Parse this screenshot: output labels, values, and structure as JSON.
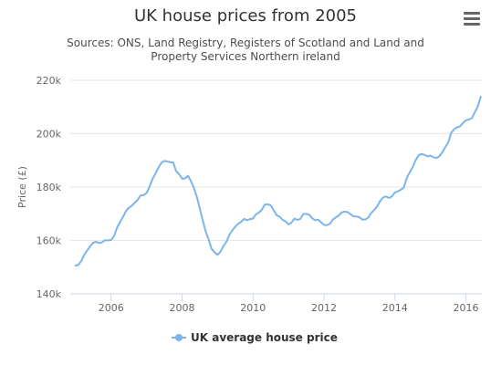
{
  "title": "UK house prices from 2005",
  "subtitle": "Sources: ONS, Land Registry, Registers of Scotland and Land and Property Services Northern ireland",
  "menu_icon": "hamburger-menu-icon",
  "chart_data": {
    "type": "line",
    "title": "UK house prices from 2005",
    "xlabel": "",
    "ylabel": "Price (£)",
    "x_ticks": [
      2006,
      2008,
      2010,
      2012,
      2014,
      2016
    ],
    "y_ticks": [
      140000,
      160000,
      180000,
      200000,
      220000
    ],
    "y_tick_labels": [
      "140k",
      "160k",
      "180k",
      "200k",
      "220k"
    ],
    "xlim": [
      2004.85,
      2016.45
    ],
    "ylim": [
      140000,
      220000
    ],
    "grid": "horizontal",
    "legend": "bottom-center",
    "series": [
      {
        "name": "UK average house price",
        "color": "#7cb5ec",
        "x": [
          2005.0,
          2005.08,
          2005.17,
          2005.25,
          2005.33,
          2005.42,
          2005.5,
          2005.58,
          2005.67,
          2005.75,
          2005.83,
          2005.92,
          2006.0,
          2006.08,
          2006.17,
          2006.25,
          2006.33,
          2006.42,
          2006.5,
          2006.58,
          2006.67,
          2006.75,
          2006.83,
          2006.92,
          2007.0,
          2007.08,
          2007.17,
          2007.25,
          2007.33,
          2007.42,
          2007.5,
          2007.58,
          2007.67,
          2007.75,
          2007.83,
          2007.92,
          2008.0,
          2008.08,
          2008.17,
          2008.25,
          2008.33,
          2008.42,
          2008.5,
          2008.58,
          2008.67,
          2008.75,
          2008.83,
          2008.92,
          2009.0,
          2009.08,
          2009.17,
          2009.25,
          2009.33,
          2009.42,
          2009.5,
          2009.58,
          2009.67,
          2009.75,
          2009.83,
          2009.92,
          2010.0,
          2010.08,
          2010.17,
          2010.25,
          2010.33,
          2010.42,
          2010.5,
          2010.58,
          2010.67,
          2010.75,
          2010.83,
          2010.92,
          2011.0,
          2011.08,
          2011.17,
          2011.25,
          2011.33,
          2011.42,
          2011.5,
          2011.58,
          2011.67,
          2011.75,
          2011.83,
          2011.92,
          2012.0,
          2012.08,
          2012.17,
          2012.25,
          2012.33,
          2012.42,
          2012.5,
          2012.58,
          2012.67,
          2012.75,
          2012.83,
          2012.92,
          2013.0,
          2013.08,
          2013.17,
          2013.25,
          2013.33,
          2013.42,
          2013.5,
          2013.58,
          2013.67,
          2013.75,
          2013.83,
          2013.92,
          2014.0,
          2014.08,
          2014.17,
          2014.25,
          2014.33,
          2014.42,
          2014.5,
          2014.58,
          2014.67,
          2014.75,
          2014.83,
          2014.92,
          2015.0,
          2015.08,
          2015.17,
          2015.25,
          2015.33,
          2015.42,
          2015.5,
          2015.58,
          2015.67,
          2015.75,
          2015.83,
          2015.92,
          2016.0,
          2016.08,
          2016.17,
          2016.25,
          2016.33,
          2016.42
        ],
        "values": [
          150600,
          150800,
          152500,
          154800,
          156300,
          158000,
          159200,
          159500,
          159000,
          159300,
          160100,
          160000,
          160200,
          161500,
          164800,
          166800,
          168600,
          171000,
          172200,
          173000,
          174200,
          175200,
          176900,
          177000,
          177800,
          180000,
          183100,
          185000,
          187100,
          189100,
          189800,
          189600,
          189300,
          189200,
          186000,
          184800,
          183100,
          183200,
          184200,
          182200,
          179800,
          176200,
          172000,
          167700,
          163200,
          160400,
          157000,
          155500,
          154600,
          155800,
          158000,
          159500,
          162000,
          163800,
          165200,
          166200,
          167000,
          168100,
          167600,
          168000,
          168200,
          169700,
          170500,
          171500,
          173400,
          173500,
          173200,
          171400,
          169400,
          168900,
          167800,
          167100,
          166000,
          166600,
          168200,
          167700,
          168000,
          169900,
          169900,
          169700,
          168300,
          167600,
          167800,
          166800,
          165800,
          165700,
          166300,
          167800,
          168600,
          169400,
          170500,
          170800,
          170600,
          169800,
          169000,
          169000,
          168700,
          167800,
          167900,
          168600,
          170300,
          171500,
          172800,
          174700,
          176100,
          176500,
          175900,
          176500,
          178000,
          178400,
          179000,
          179900,
          183300,
          185600,
          187500,
          190000,
          191900,
          192400,
          192100,
          191500,
          191800,
          191200,
          190900,
          191500,
          193000,
          195000,
          196700,
          200200,
          201700,
          202400,
          202700,
          204000,
          205000,
          205300,
          205800,
          208000,
          210000,
          213800
        ]
      }
    ]
  }
}
